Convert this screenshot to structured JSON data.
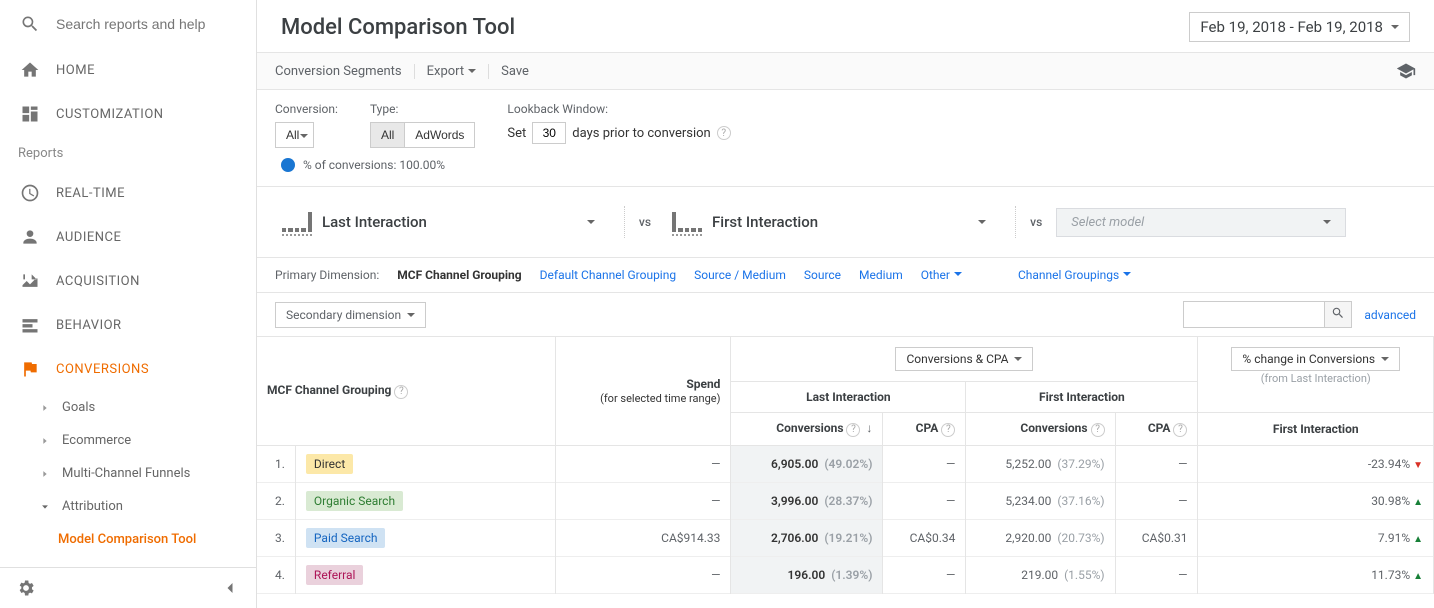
{
  "sidebar": {
    "search_placeholder": "Search reports and help",
    "home": "HOME",
    "customization": "CUSTOMIZATION",
    "reports_header": "Reports",
    "realtime": "REAL-TIME",
    "audience": "AUDIENCE",
    "acquisition": "ACQUISITION",
    "behavior": "BEHAVIOR",
    "conversions": "CONVERSIONS",
    "sub": {
      "goals": "Goals",
      "ecommerce": "Ecommerce",
      "mcf": "Multi-Channel Funnels",
      "attribution": "Attribution",
      "mct": "Model Comparison Tool"
    }
  },
  "header": {
    "title": "Model Comparison Tool",
    "date_range": "Feb 19, 2018 - Feb 19, 2018"
  },
  "toolbar": {
    "conversion_segments": "Conversion Segments",
    "export": "Export",
    "save": "Save"
  },
  "filters": {
    "conversion_label": "Conversion:",
    "conversion_btn": "All",
    "type_label": "Type:",
    "type_all": "All",
    "type_adwords": "AdWords",
    "lookback_label": "Lookback Window:",
    "lookback_set": "Set",
    "lookback_days": "30",
    "lookback_suffix": "days prior to conversion",
    "conv_pct": "% of conversions: 100.00%"
  },
  "models": {
    "m1": "Last Interaction",
    "m2": "First Interaction",
    "select_model": "Select model",
    "vs": "vs"
  },
  "dimension": {
    "label": "Primary Dimension:",
    "active": "MCF Channel Grouping",
    "default": "Default Channel Grouping",
    "source_medium": "Source / Medium",
    "source": "Source",
    "medium": "Medium",
    "other": "Other",
    "channel_groupings": "Channel Groupings"
  },
  "secondary": {
    "btn": "Secondary dimension",
    "advanced": "advanced"
  },
  "table": {
    "col_channel": "MCF Channel Grouping",
    "col_spend": "Spend",
    "col_spend_sub": "(for selected time range)",
    "col_last": "Last Interaction",
    "col_first": "First Interaction",
    "col_conversions_cpa": "Conversions & CPA",
    "col_change": "% change in Conversions",
    "col_change_sub": "(from Last Interaction)",
    "col_conv": "Conversions",
    "col_cpa": "CPA",
    "rows": [
      {
        "idx": "1.",
        "name": "Direct",
        "pill": "pill-direct",
        "spend": "—",
        "li_conv": "6,905.00",
        "li_pct": "(49.02%)",
        "li_cpa": "—",
        "fi_conv": "5,252.00",
        "fi_pct": "(37.29%)",
        "fi_cpa": "—",
        "change": "-23.94%",
        "dir": "down"
      },
      {
        "idx": "2.",
        "name": "Organic Search",
        "pill": "pill-organic",
        "spend": "—",
        "li_conv": "3,996.00",
        "li_pct": "(28.37%)",
        "li_cpa": "—",
        "fi_conv": "5,234.00",
        "fi_pct": "(37.16%)",
        "fi_cpa": "—",
        "change": "30.98%",
        "dir": "up"
      },
      {
        "idx": "3.",
        "name": "Paid Search",
        "pill": "pill-paid",
        "spend": "CA$914.33",
        "li_conv": "2,706.00",
        "li_pct": "(19.21%)",
        "li_cpa": "CA$0.34",
        "fi_conv": "2,920.00",
        "fi_pct": "(20.73%)",
        "fi_cpa": "CA$0.31",
        "change": "7.91%",
        "dir": "up"
      },
      {
        "idx": "4.",
        "name": "Referral",
        "pill": "pill-referral",
        "spend": "—",
        "li_conv": "196.00",
        "li_pct": "(1.39%)",
        "li_cpa": "—",
        "fi_conv": "219.00",
        "fi_pct": "(1.55%)",
        "fi_cpa": "—",
        "change": "11.73%",
        "dir": "up"
      }
    ]
  }
}
